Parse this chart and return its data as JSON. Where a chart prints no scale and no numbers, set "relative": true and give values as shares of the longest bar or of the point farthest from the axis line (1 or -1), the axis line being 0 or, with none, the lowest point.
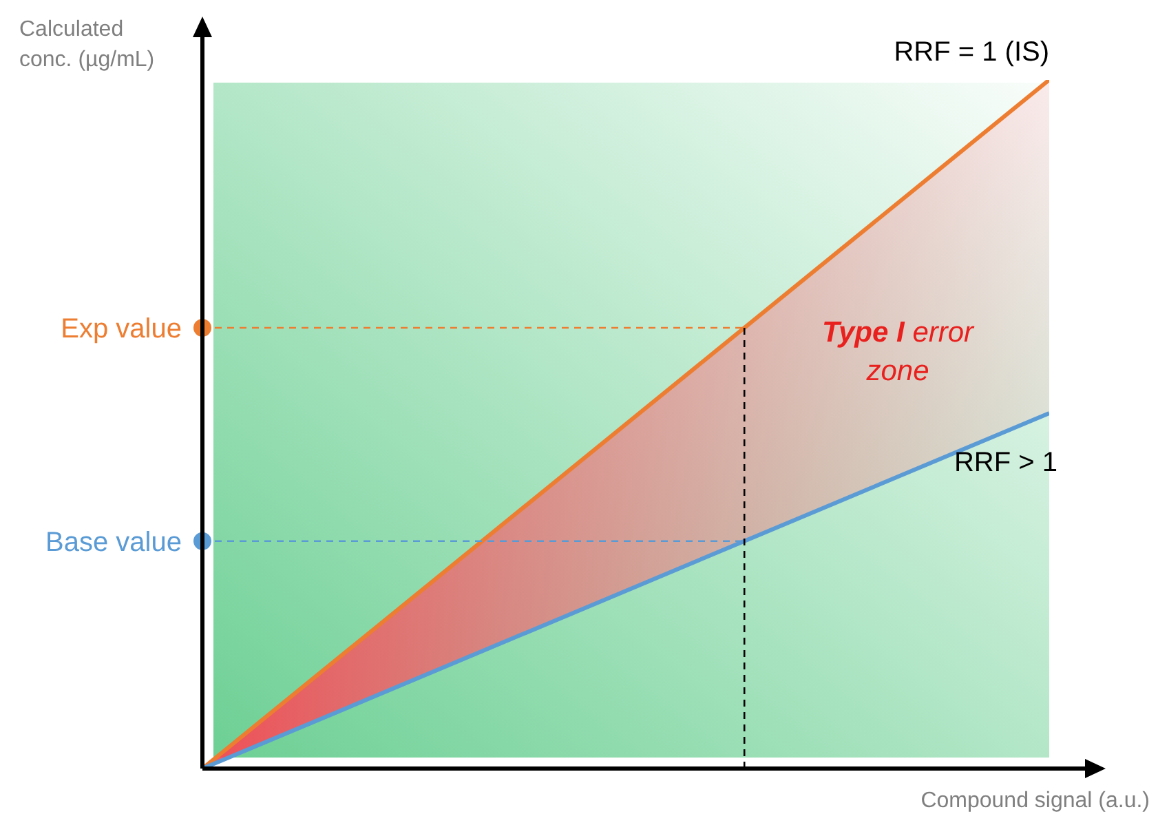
{
  "chart_data": {
    "type": "line",
    "relative": true,
    "xlabel": "Compound signal (a.u.)",
    "ylabel": "Calculated conc. (µg/mL)",
    "categories": [
      null,
      null
    ],
    "series": [
      {
        "name": "RRF = 1 (IS)",
        "color": "#ed7d31",
        "values": [
          0,
          1
        ]
      },
      {
        "name": "RRF > 1",
        "color": "#5b9bd5",
        "values": [
          0,
          0.516
        ]
      }
    ],
    "annotations": [
      "Exp value",
      "Base value",
      "Type I error zone"
    ],
    "marker": "none",
    "line_style": "solid"
  }
}
